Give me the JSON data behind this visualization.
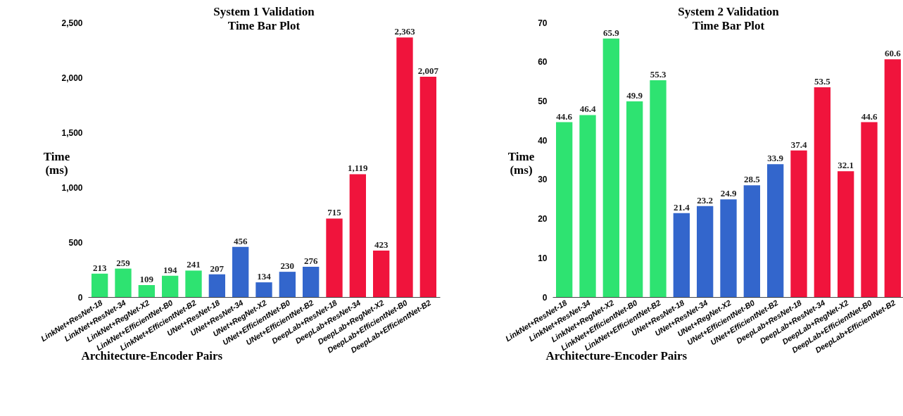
{
  "chart_data": [
    {
      "type": "bar",
      "title": "System 1 Validation\nTime Bar Plot",
      "xlabel": "Architecture-Encoder Pairs",
      "ylabel": "Time\n(ms)",
      "categories": [
        "LinkNet+ResNet-18",
        "LinkNet+ResNet-34",
        "LinkNet+RegNet-X2",
        "LinkNet+EfficientNet-B0",
        "LinkNet+EfficientNet-B2",
        "UNet+ResNet-18",
        "UNet+ResNet-34",
        "UNet+RegNet-X2",
        "UNet+EfficientNet-B0",
        "UNet+EfficientNet-B2",
        "DeepLab+ResNet-18",
        "DeepLab+ResNet-34",
        "DeepLab+RegNet-X2",
        "DeepLab+EfficientNet-B0",
        "DeepLab+EfficientNet-B2"
      ],
      "values": [
        213,
        259,
        109,
        194,
        241,
        207,
        456,
        134,
        230,
        276,
        715,
        1119,
        423,
        2363,
        2007
      ],
      "value_labels": [
        "213",
        "259",
        "109",
        "194",
        "241",
        "207",
        "456",
        "134",
        "230",
        "276",
        "715",
        "1,119",
        "423",
        "2,363",
        "2,007"
      ],
      "colors": [
        "#2ee371",
        "#2ee371",
        "#2ee371",
        "#2ee371",
        "#2ee371",
        "#3366cc",
        "#3366cc",
        "#3366cc",
        "#3366cc",
        "#3366cc",
        "#f0143c",
        "#f0143c",
        "#f0143c",
        "#f0143c",
        "#f0143c"
      ],
      "ylim": [
        0,
        2500
      ],
      "yticks": [
        0,
        500,
        {
          "value": 1000,
          "label": "1,000"
        },
        {
          "value": 1500,
          "label": "1,500"
        },
        {
          "value": 2000,
          "label": "2,000"
        },
        {
          "value": 2500,
          "label": "2,500"
        }
      ]
    },
    {
      "type": "bar",
      "title": "System 2 Validation\nTime Bar Plot",
      "xlabel": "Architecture-Encoder Pairs",
      "ylabel": "Time\n(ms)",
      "categories": [
        "LinkNet+ResNet-18",
        "LinkNet+ResNet-34",
        "LinkNet+RegNet-X2",
        "LinkNet+EfficientNet-B0",
        "LinkNet+EfficientNet-B2",
        "UNet+ResNet-18",
        "UNet+ResNet-34",
        "UNet+RegNet-X2",
        "UNet+EfficientNet-B0",
        "UNet+EfficientNet-B2",
        "DeepLab+ResNet-18",
        "DeepLab+ResNet-34",
        "DeepLab+RegNet-X2",
        "DeepLab+EfficientNet-B0",
        "DeepLab+EfficientNet-B2"
      ],
      "values": [
        44.6,
        46.4,
        65.9,
        49.9,
        55.3,
        21.4,
        23.2,
        24.9,
        28.5,
        33.9,
        37.4,
        53.5,
        32.1,
        44.6,
        60.6
      ],
      "data_labels": true,
      "colors": [
        "#2ee371",
        "#2ee371",
        "#2ee371",
        "#2ee371",
        "#2ee371",
        "#3366cc",
        "#3366cc",
        "#3366cc",
        "#3366cc",
        "#3366cc",
        "#f0143c",
        "#f0143c",
        "#f0143c",
        "#f0143c",
        "#f0143c"
      ],
      "ylim": [
        0,
        70
      ],
      "yticks": [
        0,
        10,
        20,
        30,
        40,
        50,
        60,
        70
      ]
    }
  ]
}
